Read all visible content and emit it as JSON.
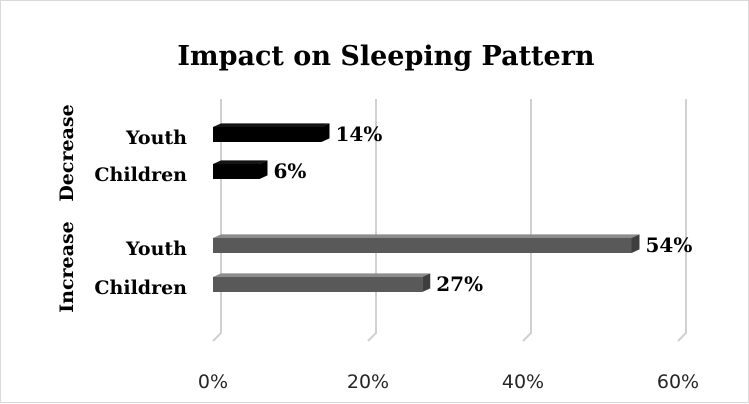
{
  "chart_data": {
    "type": "bar",
    "orientation": "horizontal",
    "style": "3d",
    "title": "Impact on Sleeping Pattern",
    "xlim": [
      0,
      60
    ],
    "xticks": [
      "0%",
      "20%",
      "40%",
      "60%"
    ],
    "grid": true,
    "groups": [
      {
        "name": "Decrease",
        "color": "#000000",
        "items": [
          {
            "category": "Youth",
            "value": 14,
            "label": "14%"
          },
          {
            "category": "Children",
            "value": 6,
            "label": "6%"
          }
        ]
      },
      {
        "name": "Increase",
        "color": "#595959",
        "items": [
          {
            "category": "Youth",
            "value": 54,
            "label": "54%"
          },
          {
            "category": "Children",
            "value": 27,
            "label": "27%"
          }
        ]
      }
    ]
  }
}
